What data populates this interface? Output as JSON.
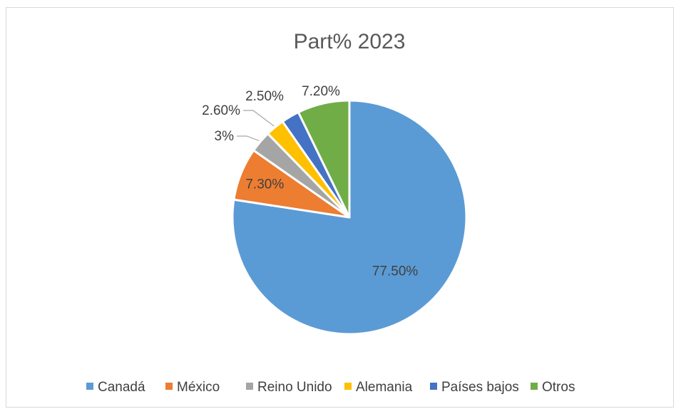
{
  "chart_data": {
    "type": "pie",
    "title": "Part% 2023",
    "categories": [
      "Canadá",
      "México",
      "Reino Unido",
      "Alemania",
      "Países bajos",
      "Otros"
    ],
    "values": [
      77.5,
      7.3,
      3,
      2.6,
      2.5,
      7.2
    ],
    "data_labels": [
      "77.50%",
      "7.30%",
      "3%",
      "2.60%",
      "2.50%",
      "7.20%"
    ],
    "colors": [
      "#5b9bd5",
      "#ed7d31",
      "#a5a5a5",
      "#ffc000",
      "#4472c4",
      "#70ad47"
    ],
    "start_angle": "12 o'clock",
    "direction": "clockwise",
    "legend_position": "bottom"
  }
}
